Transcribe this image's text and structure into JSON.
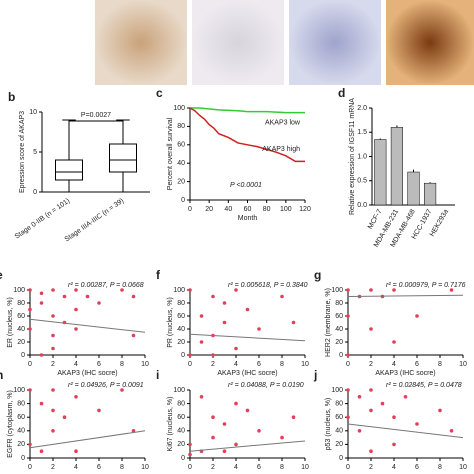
{
  "chart_data": [
    {
      "type": "box",
      "panel": "b",
      "y_label": "Epression score of AKAP3",
      "annotation": "P=0.0027",
      "categories": [
        "Stage 0-IIB (n = 101)",
        "Stage IIIA-IIIC (n = 39)"
      ],
      "boxes": [
        {
          "min": 0,
          "q1": 1.5,
          "median": 2.5,
          "q3": 4,
          "max": 9
        },
        {
          "min": 0,
          "q1": 2.5,
          "median": 4,
          "q3": 6,
          "max": 9
        }
      ],
      "ylim": [
        0,
        10
      ],
      "yticks": [
        0,
        5,
        10
      ]
    },
    {
      "type": "line",
      "panel": "c",
      "x_label": "Month",
      "y_label": "Percent overall survival",
      "annotation": "P <0.0001",
      "xlim": [
        0,
        120
      ],
      "xticks": [
        0,
        20,
        40,
        60,
        80,
        100,
        120
      ],
      "ylim": [
        0,
        100
      ],
      "yticks": [
        0,
        20,
        40,
        60,
        80,
        100
      ],
      "series": [
        {
          "name": "AKAP3 low",
          "color": "#33cc33",
          "x": [
            0,
            10,
            30,
            50,
            60,
            80,
            100,
            120
          ],
          "values": [
            100,
            100,
            98,
            97,
            96,
            96,
            95,
            95
          ]
        },
        {
          "name": "AKAP3 high",
          "color": "#cc2222",
          "x": [
            0,
            5,
            10,
            15,
            20,
            25,
            30,
            40,
            50,
            60,
            70,
            80,
            90,
            100,
            110,
            120
          ],
          "values": [
            100,
            97,
            92,
            88,
            82,
            78,
            72,
            68,
            62,
            60,
            58,
            55,
            52,
            48,
            42,
            42
          ]
        }
      ]
    },
    {
      "type": "bar",
      "panel": "d",
      "y_label": "Relative expression of IGSF11 mRNA",
      "color": "#bbbbbb",
      "categories": [
        "MCF-7",
        "MDA-MB-231",
        "MDA-MB-468",
        "HCC-1937",
        "HEK293a"
      ],
      "values": [
        1.35,
        1.6,
        0.68,
        0.45,
        0
      ],
      "errors": [
        0.02,
        0.04,
        0.05,
        0.02,
        0
      ],
      "ylim": [
        0,
        2
      ],
      "yticks": [
        {
          "value": 0,
          "label": "0.0"
        },
        0.5,
        {
          "value": 1,
          "label": "1.0"
        },
        1.5,
        {
          "value": 2,
          "label": "2.0"
        }
      ]
    },
    {
      "type": "scatter",
      "panel": "e",
      "x_label": "AKAP3 (IHC socre)",
      "y_label": "ER (nucleus, %)",
      "annotation": "r² = 0.00287, P = 0.0668",
      "color": "#e0405a",
      "x": [
        0,
        0,
        1,
        1,
        1,
        2,
        2,
        2,
        3,
        3,
        4,
        4,
        5,
        6,
        8,
        9,
        9,
        0,
        2,
        4
      ],
      "values": [
        100,
        40,
        95,
        80,
        0,
        100,
        60,
        10,
        90,
        50,
        100,
        70,
        90,
        80,
        100,
        90,
        30,
        70,
        30,
        40
      ],
      "trend_line": {
        "x": [
          0,
          10
        ],
        "y": [
          55,
          35
        ]
      },
      "xlim": [
        0,
        10
      ],
      "xticks": [
        0,
        2,
        4,
        6,
        8,
        10
      ],
      "ylim": [
        0,
        100
      ],
      "yticks": [
        0,
        20,
        40,
        60,
        80,
        100
      ]
    },
    {
      "type": "scatter",
      "panel": "f",
      "x_label": "AKAP3 (IHC socre)",
      "y_label": "PR (nucleus, %)",
      "annotation": "r² = 0.005618, P = 0.3840",
      "color": "#e0405a",
      "x": [
        0,
        0,
        1,
        2,
        2,
        2,
        3,
        4,
        4,
        5,
        6,
        8,
        9,
        1,
        3
      ],
      "values": [
        100,
        0,
        60,
        90,
        30,
        0,
        80,
        100,
        10,
        70,
        40,
        90,
        50,
        20,
        50
      ],
      "trend_line": {
        "x": [
          0,
          10
        ],
        "y": [
          32,
          22
        ]
      },
      "xlim": [
        0,
        10
      ],
      "xticks": [
        0,
        2,
        4,
        6,
        8,
        10
      ],
      "ylim": [
        0,
        100
      ],
      "yticks": [
        0,
        20,
        40,
        60,
        80,
        100
      ]
    },
    {
      "type": "scatter",
      "panel": "g",
      "x_label": "AKAP3 (IHC socre)",
      "y_label": "HER2 (membrane, %)",
      "annotation": "r² = 0.000979, P = 0.7176",
      "color": "#e0405a",
      "x": [
        0,
        0,
        0,
        2,
        2,
        4,
        4,
        6,
        9,
        1,
        3
      ],
      "values": [
        100,
        0,
        60,
        100,
        40,
        100,
        20,
        60,
        100,
        90,
        90
      ],
      "trend_line": {
        "x": [
          0,
          10
        ],
        "y": [
          90,
          92
        ]
      },
      "xlim": [
        0,
        10
      ],
      "xticks": [
        0,
        2,
        4,
        6,
        8,
        10
      ],
      "ylim": [
        0,
        100
      ],
      "yticks": [
        0,
        20,
        40,
        60,
        80,
        100
      ]
    },
    {
      "type": "scatter",
      "panel": "h",
      "y_label": "EGFR (cytoplasm, %)",
      "annotation": "r² = 0.04926, P = 0.0091",
      "color": "#e0405a",
      "x": [
        0,
        0,
        1,
        2,
        2,
        3,
        4,
        4,
        6,
        8,
        9,
        1,
        2
      ],
      "values": [
        100,
        20,
        80,
        100,
        40,
        60,
        90,
        10,
        70,
        100,
        40,
        10,
        70
      ],
      "trend_line": {
        "x": [
          0,
          10
        ],
        "y": [
          15,
          40
        ]
      },
      "xlim": [
        0,
        10
      ],
      "xticks": [
        0,
        2,
        4,
        6,
        8,
        10
      ],
      "ylim": [
        0,
        100
      ],
      "yticks": [
        0,
        20,
        40,
        60,
        80,
        100
      ]
    },
    {
      "type": "scatter",
      "panel": "i",
      "y_label": "Ki67 (nucleus, %)",
      "annotation": "r² = 0.04088, P = 0.0190",
      "color": "#e0405a",
      "x": [
        0,
        1,
        1,
        2,
        2,
        3,
        4,
        4,
        5,
        6,
        8,
        9,
        0,
        3
      ],
      "values": [
        20,
        90,
        10,
        60,
        30,
        50,
        80,
        20,
        70,
        40,
        30,
        60,
        5,
        10
      ],
      "trend_line": {
        "x": [
          0,
          10
        ],
        "y": [
          10,
          25
        ]
      },
      "xlim": [
        0,
        10
      ],
      "xticks": [
        0,
        2,
        4,
        6,
        8,
        10
      ],
      "ylim": [
        0,
        100
      ],
      "yticks": [
        0,
        20,
        40,
        60,
        80,
        100
      ]
    },
    {
      "type": "scatter",
      "panel": "j",
      "y_label": "p53 (nucleus, %)",
      "annotation": "r² = 0.02845, P = 0.0478",
      "color": "#e0405a",
      "x": [
        0,
        0,
        1,
        1,
        2,
        2,
        3,
        4,
        4,
        5,
        6,
        9,
        8,
        2
      ],
      "values": [
        100,
        60,
        90,
        40,
        100,
        70,
        80,
        60,
        20,
        90,
        50,
        40,
        70,
        10
      ],
      "trend_line": {
        "x": [
          0,
          10
        ],
        "y": [
          50,
          30
        ]
      },
      "xlim": [
        0,
        10
      ],
      "xticks": [
        0,
        2,
        4,
        6,
        8,
        10
      ],
      "ylim": [
        0,
        100
      ],
      "yticks": [
        0,
        20,
        40,
        60,
        80,
        100
      ]
    }
  ]
}
